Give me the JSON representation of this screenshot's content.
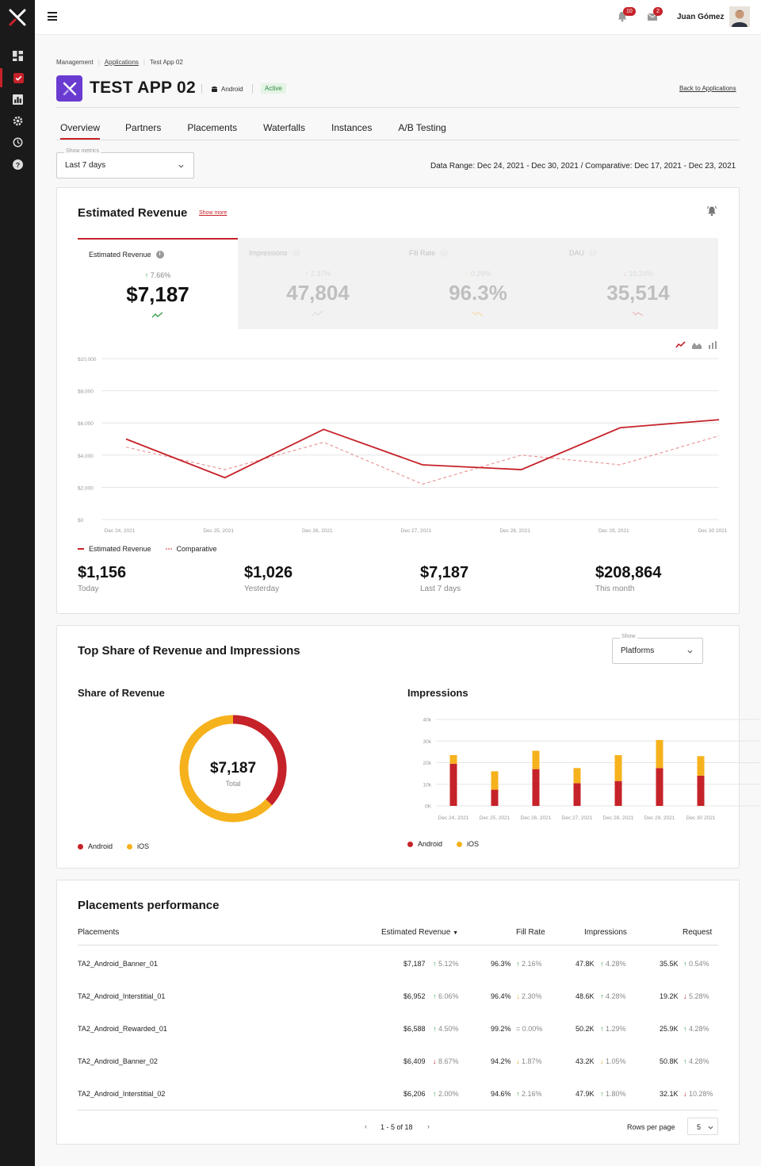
{
  "user": {
    "name": "Juan Gómez"
  },
  "notifications": {
    "bell_count": "10",
    "mail_count": "2"
  },
  "breadcrumb": {
    "items": [
      "Management",
      "Applications",
      "Test App 02"
    ]
  },
  "app": {
    "title": "TEST APP 02",
    "platform": "Android",
    "status": "Active",
    "back_label": "Back to Applications"
  },
  "tabs": [
    "Overview",
    "Partners",
    "Placements",
    "Waterfalls",
    "Instances",
    "A/B Testing"
  ],
  "metrics_select": {
    "label": "Show metrics",
    "value": "Last 7 days"
  },
  "date_range": "Data Range: Dec 24, 2021 - Dec 30, 2021  /  Comparative: Dec 17, 2021 - Dec 23, 2021",
  "revenue_card": {
    "title": "Estimated Revenue",
    "show_more": "Show more",
    "kpis": [
      {
        "name": "Estimated Revenue",
        "delta": "7.66%",
        "direction": "up",
        "value": "$7,187"
      },
      {
        "name": "Impressions",
        "delta": "2.37%",
        "direction": "up",
        "value": "47,804"
      },
      {
        "name": "Fill Rate",
        "delta": "0.29%",
        "direction": "down",
        "value": "96.3%"
      },
      {
        "name": "DAU",
        "delta": "10.24%",
        "direction": "down",
        "value": "35,514"
      }
    ],
    "legend": {
      "primary": "Estimated Revenue",
      "comparative": "Comparative"
    },
    "totals": [
      {
        "value": "$1,156",
        "label": "Today"
      },
      {
        "value": "$1,026",
        "label": "Yesterday"
      },
      {
        "value": "$7,187",
        "label": "Last 7 days"
      },
      {
        "value": "$208,864",
        "label": "This month"
      }
    ]
  },
  "share_card": {
    "title": "Top Share of Revenue and Impressions",
    "show_select": {
      "label": "Show",
      "value": "Platforms"
    },
    "revenue_title": "Share of Revenue",
    "donut_value": "$7,187",
    "donut_label": "Total",
    "impressions_title": "Impressions",
    "legend": [
      "Android",
      "iOS"
    ]
  },
  "colors": {
    "accent": "#c62229",
    "ios": "#f6b21d",
    "comparative": "#e89a9a",
    "up": "#3aa04a"
  },
  "chart_data": [
    {
      "type": "line",
      "x": [
        "Dec 24, 2021",
        "Dec 25, 2021",
        "Dec 26, 2021",
        "Dec 27, 2021",
        "Dec 28, 2021",
        "Dec 29, 2021",
        "Dec 30 2021"
      ],
      "ylim": [
        0,
        10000
      ],
      "yticks": [
        "$0",
        "$2,000",
        "$4,000",
        "$6,000",
        "$8,000",
        "$10,000"
      ],
      "series": [
        {
          "name": "Estimated Revenue",
          "values": [
            5000,
            2600,
            5600,
            3400,
            3100,
            5700,
            6200
          ]
        },
        {
          "name": "Comparative",
          "values": [
            4500,
            3100,
            4800,
            2200,
            4000,
            3400,
            5200
          ]
        }
      ]
    },
    {
      "type": "pie",
      "categories": [
        "Android",
        "iOS"
      ],
      "values": [
        37,
        63
      ]
    },
    {
      "type": "bar",
      "stacked": true,
      "categories": [
        "Dec 24, 2021",
        "Dec 25, 2021",
        "Dec 26, 2021",
        "Dec 27, 2021",
        "Dec 28, 2021",
        "Dec 29, 2021",
        "Dec 30 2021"
      ],
      "ylim": [
        0,
        40000
      ],
      "yticks": [
        "0K",
        "10k",
        "20k",
        "30k",
        "40k"
      ],
      "series": [
        {
          "name": "Android",
          "values": [
            19500,
            7500,
            17000,
            10500,
            11500,
            17500,
            14000
          ]
        },
        {
          "name": "iOS",
          "values": [
            4000,
            8500,
            8500,
            7000,
            12000,
            13000,
            9000
          ]
        }
      ]
    }
  ],
  "placements": {
    "title": "Placements performance",
    "headers": [
      "Placements",
      "Estimated Revenue",
      "Fill Rate",
      "Impressions",
      "Request"
    ],
    "rows": [
      {
        "name": "TA2_Android_Banner_01",
        "rev": "$7,187",
        "rev_d": "5.12%",
        "rev_dir": "up",
        "fill": "96.3%",
        "fill_d": "2.16%",
        "fill_dir": "up",
        "imp": "47.8K",
        "imp_d": "4.28%",
        "imp_dir": "up",
        "req": "35.5K",
        "req_d": "0.54%",
        "req_dir": "up"
      },
      {
        "name": "TA2_Android_Interstitial_01",
        "rev": "$6,952",
        "rev_d": "6.06%",
        "rev_dir": "up",
        "fill": "96.4%",
        "fill_d": "2.30%",
        "fill_dir": "warn",
        "imp": "48.6K",
        "imp_d": "4.28%",
        "imp_dir": "up",
        "req": "19.2K",
        "req_d": "5.28%",
        "req_dir": "down"
      },
      {
        "name": "TA2_Android_Rewarded_01",
        "rev": "$6,588",
        "rev_d": "4.50%",
        "rev_dir": "up",
        "fill": "99.2%",
        "fill_d": "0.00%",
        "fill_dir": "flat",
        "imp": "50.2K",
        "imp_d": "1.29%",
        "imp_dir": "up",
        "req": "25.9K",
        "req_d": "4.28%",
        "req_dir": "up"
      },
      {
        "name": "TA2_Android_Banner_02",
        "rev": "$6,409",
        "rev_d": "8.67%",
        "rev_dir": "down",
        "fill": "94.2%",
        "fill_d": "1.87%",
        "fill_dir": "warn",
        "imp": "43.2K",
        "imp_d": "1.05%",
        "imp_dir": "warn",
        "req": "50.8K",
        "req_d": "4.28%",
        "req_dir": "up"
      },
      {
        "name": "TA2_Android_Interstitial_02",
        "rev": "$6,206",
        "rev_d": "2.00%",
        "rev_dir": "up",
        "fill": "94.6%",
        "fill_d": "2.16%",
        "fill_dir": "up",
        "imp": "47.9K",
        "imp_d": "1.80%",
        "imp_dir": "up",
        "req": "32.1K",
        "req_d": "10.28%",
        "req_dir": "down"
      }
    ],
    "pagination": "1 - 5 of 18",
    "rows_per_page_label": "Rows per page",
    "rows_per_page": "5"
  }
}
